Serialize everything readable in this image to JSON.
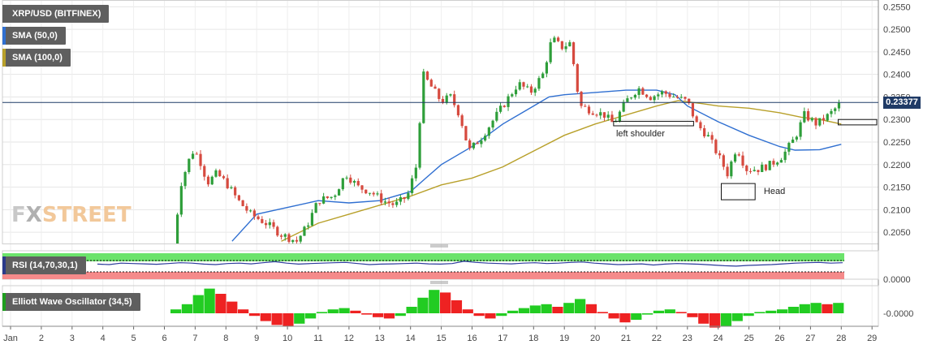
{
  "chart_data": {
    "type": "candlestick",
    "instrument": "XRP/USD (BITFINEX)",
    "indicators": [
      {
        "name": "SMA (50,0)",
        "color": "#2f6fd1"
      },
      {
        "name": "SMA (100,0)",
        "color": "#b8a02a"
      }
    ],
    "current_price": "0.23377",
    "y_ticks": [
      "0.2550",
      "0.2500",
      "0.2450",
      "0.2400",
      "0.2350",
      "0.2300",
      "0.2250",
      "0.2200",
      "0.2150",
      "0.2100",
      "0.2050"
    ],
    "ylim": [
      0.2025,
      0.2565
    ],
    "x_ticks": [
      "Jan",
      "2",
      "3",
      "4",
      "5",
      "6",
      "7",
      "8",
      "9",
      "10",
      "11",
      "12",
      "13",
      "14",
      "15",
      "16",
      "17",
      "18",
      "19",
      "20",
      "21",
      "22",
      "23",
      "24",
      "25",
      "26",
      "27",
      "28",
      "29"
    ],
    "price_path": [
      [
        6.3,
        0.2
      ],
      [
        6.5,
        0.215
      ],
      [
        6.9,
        0.223
      ],
      [
        7.1,
        0.222
      ],
      [
        7.4,
        0.216
      ],
      [
        7.7,
        0.218
      ],
      [
        8.0,
        0.216
      ],
      [
        8.4,
        0.212
      ],
      [
        8.8,
        0.209
      ],
      [
        9.3,
        0.207
      ],
      [
        9.8,
        0.2045
      ],
      [
        10.3,
        0.203
      ],
      [
        10.6,
        0.206
      ],
      [
        11.0,
        0.212
      ],
      [
        11.5,
        0.213
      ],
      [
        11.9,
        0.218
      ],
      [
        12.3,
        0.215
      ],
      [
        12.7,
        0.214
      ],
      [
        13.1,
        0.212
      ],
      [
        13.5,
        0.211
      ],
      [
        13.9,
        0.213
      ],
      [
        14.2,
        0.22
      ],
      [
        14.4,
        0.24
      ],
      [
        14.7,
        0.237
      ],
      [
        15.0,
        0.234
      ],
      [
        15.3,
        0.235
      ],
      [
        15.6,
        0.231
      ],
      [
        15.9,
        0.223
      ],
      [
        16.3,
        0.226
      ],
      [
        16.7,
        0.23
      ],
      [
        17.1,
        0.234
      ],
      [
        17.5,
        0.238
      ],
      [
        17.9,
        0.236
      ],
      [
        18.3,
        0.24
      ],
      [
        18.6,
        0.248
      ],
      [
        18.9,
        0.246
      ],
      [
        19.2,
        0.247
      ],
      [
        19.5,
        0.233
      ],
      [
        19.9,
        0.232
      ],
      [
        20.3,
        0.231
      ],
      [
        20.6,
        0.229
      ],
      [
        21.0,
        0.234
      ],
      [
        21.4,
        0.237
      ],
      [
        21.8,
        0.235
      ],
      [
        22.2,
        0.236
      ],
      [
        22.6,
        0.235
      ],
      [
        23.0,
        0.234
      ],
      [
        23.3,
        0.229
      ],
      [
        23.7,
        0.226
      ],
      [
        24.0,
        0.222
      ],
      [
        24.3,
        0.218
      ],
      [
        24.6,
        0.224
      ],
      [
        24.9,
        0.219
      ],
      [
        25.3,
        0.219
      ],
      [
        25.7,
        0.22
      ],
      [
        26.1,
        0.222
      ],
      [
        26.5,
        0.226
      ],
      [
        26.8,
        0.231
      ],
      [
        27.2,
        0.229
      ],
      [
        27.6,
        0.231
      ],
      [
        28.0,
        0.2337
      ]
    ],
    "sma50": [
      [
        8.2,
        0.203
      ],
      [
        9.0,
        0.209
      ],
      [
        10.0,
        0.2105
      ],
      [
        11.0,
        0.212
      ],
      [
        12.0,
        0.2115
      ],
      [
        13.0,
        0.212
      ],
      [
        14.0,
        0.214
      ],
      [
        14.5,
        0.217
      ],
      [
        15.0,
        0.22
      ],
      [
        16.0,
        0.224
      ],
      [
        17.0,
        0.229
      ],
      [
        18.0,
        0.233
      ],
      [
        18.5,
        0.235
      ],
      [
        19.0,
        0.2355
      ],
      [
        20.0,
        0.236
      ],
      [
        21.0,
        0.2365
      ],
      [
        22.0,
        0.2365
      ],
      [
        22.6,
        0.2355
      ],
      [
        23.0,
        0.233
      ],
      [
        24.0,
        0.2295
      ],
      [
        25.0,
        0.2265
      ],
      [
        26.0,
        0.224
      ],
      [
        26.5,
        0.2232
      ],
      [
        27.3,
        0.2233
      ],
      [
        28.0,
        0.2245
      ]
    ],
    "sma100": [
      [
        9.8,
        0.203
      ],
      [
        11.0,
        0.207
      ],
      [
        12.0,
        0.209
      ],
      [
        13.0,
        0.211
      ],
      [
        14.0,
        0.213
      ],
      [
        15.0,
        0.2155
      ],
      [
        16.0,
        0.217
      ],
      [
        17.0,
        0.2195
      ],
      [
        18.0,
        0.223
      ],
      [
        19.0,
        0.2265
      ],
      [
        20.0,
        0.229
      ],
      [
        21.0,
        0.231
      ],
      [
        22.0,
        0.233
      ],
      [
        22.7,
        0.2342
      ],
      [
        23.5,
        0.2335
      ],
      [
        24.0,
        0.233
      ],
      [
        25.0,
        0.2325
      ],
      [
        26.0,
        0.2315
      ],
      [
        26.7,
        0.2305
      ],
      [
        27.3,
        0.23
      ],
      [
        28.0,
        0.229
      ]
    ],
    "annotations": [
      {
        "label": "left shoulder",
        "x": 21.5,
        "y": 0.2265
      },
      {
        "label": "Head",
        "x": 25.8,
        "y": 0.214
      }
    ],
    "rsi": {
      "name": "RSI (14,70,30,1)",
      "y_tick": "0.0000",
      "values": [
        0.55,
        0.52,
        0.6,
        0.58,
        0.56,
        0.54,
        0.58,
        0.62,
        0.6,
        0.55,
        0.52,
        0.58,
        0.6,
        0.56,
        0.62,
        0.68,
        0.6,
        0.55,
        0.58,
        0.6,
        0.62,
        0.64,
        0.58,
        0.52,
        0.55,
        0.56,
        0.58,
        0.6,
        0.56,
        0.55,
        0.58,
        0.7,
        0.64,
        0.6,
        0.58,
        0.56,
        0.6,
        0.62,
        0.58,
        0.6,
        0.64,
        0.66,
        0.6,
        0.56,
        0.52,
        0.54,
        0.56,
        0.5,
        0.55,
        0.58,
        0.56,
        0.54,
        0.5,
        0.46,
        0.44,
        0.48,
        0.5,
        0.52,
        0.56,
        0.6,
        0.62,
        0.64,
        0.6,
        0.62
      ]
    },
    "ewo": {
      "name": "Elliott Wave Oscillator (34,5)",
      "y_tick": "-0.0000",
      "values": [
        0.15,
        0.35,
        0.7,
        0.95,
        0.75,
        0.45,
        0.15,
        -0.1,
        -0.3,
        -0.45,
        -0.5,
        -0.4,
        -0.2,
        0.05,
        0.15,
        0.2,
        0.1,
        -0.05,
        -0.15,
        -0.2,
        -0.1,
        0.25,
        0.6,
        0.9,
        0.8,
        0.5,
        0.15,
        -0.1,
        -0.2,
        -0.1,
        0.1,
        0.2,
        0.3,
        0.35,
        0.25,
        0.4,
        0.55,
        0.35,
        0.05,
        -0.2,
        -0.35,
        -0.25,
        -0.05,
        0.1,
        0.15,
        0.05,
        -0.15,
        -0.4,
        -0.55,
        -0.5,
        -0.3,
        -0.1,
        0.05,
        0.1,
        0.15,
        0.25,
        0.35,
        0.4,
        0.35,
        0.4
      ]
    }
  }
}
